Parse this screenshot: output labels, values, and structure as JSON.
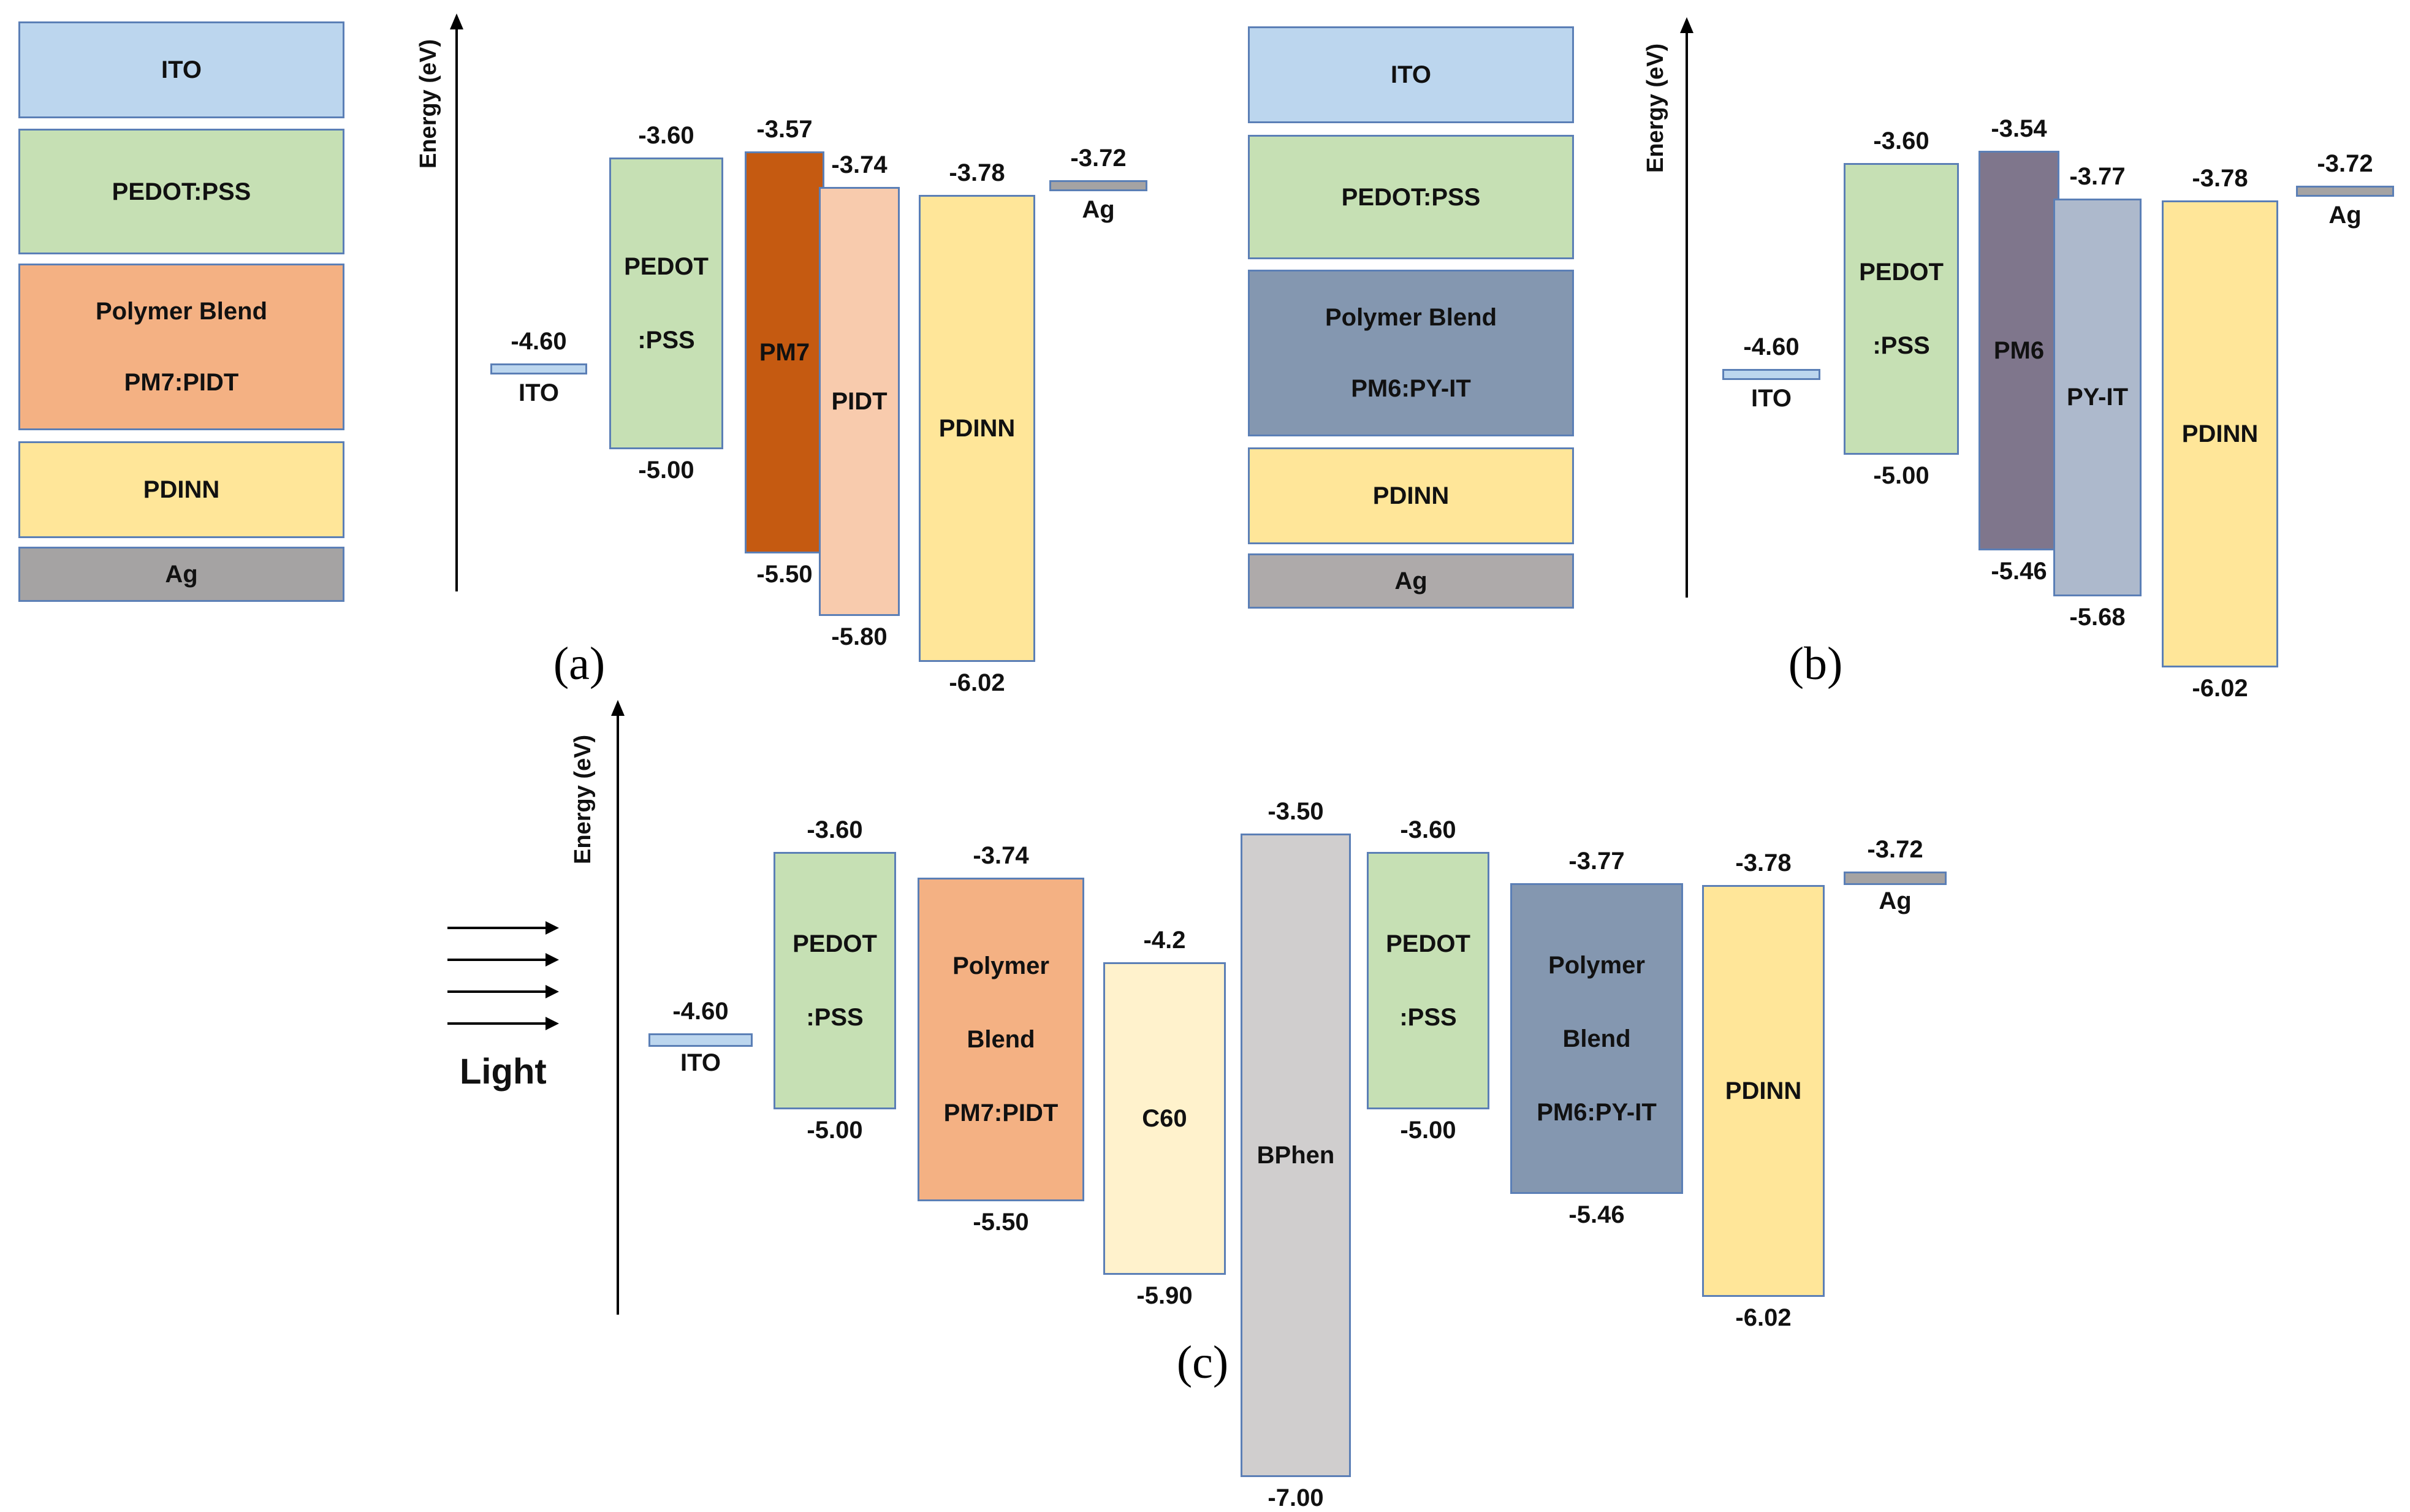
{
  "colors": {
    "ITO": "#bcd6ee",
    "PEDOT": "#c6e0b4",
    "PM7": "#c55a11",
    "PIDT": "#f8cbad",
    "PDINN": "#ffe699",
    "Ag": "#a5a3a3",
    "PM6": "#7f768c",
    "PYIT": "#adb9cc",
    "BlendA": "#f4b183",
    "BlendB": "#8497b0",
    "C60": "#fff2cc",
    "BPhen": "#d0cece",
    "stackAg": "#aeaaaa"
  },
  "panels": [
    {
      "tag": "(a)",
      "axis_label": "Energy (eV)",
      "stack": [
        {
          "label": "ITO",
          "color": "ITO"
        },
        {
          "label": "PEDOT:PSS",
          "color": "PEDOT"
        },
        {
          "label": "Polymer Blend\nPM7:PIDT",
          "color": "BlendA"
        },
        {
          "label": "PDINN",
          "color": "PDINN"
        },
        {
          "label": "Ag",
          "color": "Ag"
        }
      ],
      "levels": [
        {
          "name": "ITO",
          "color": "ITO",
          "top": "-4.60",
          "bottom": null,
          "lumo": -4.6,
          "homo": null,
          "label_inside": false
        },
        {
          "name": "PEDOT\n:PSS",
          "color": "PEDOT",
          "top": "-3.60",
          "bottom": "-5.00",
          "lumo": -3.6,
          "homo": -5.0,
          "label_inside": true
        },
        {
          "name": "PM7",
          "color": "PM7",
          "top": "-3.57",
          "bottom": "-5.50",
          "lumo": -3.57,
          "homo": -5.5,
          "label_inside": true
        },
        {
          "name": "PIDT",
          "color": "PIDT",
          "top": "-3.74",
          "bottom": "-5.80",
          "lumo": -3.74,
          "homo": -5.8,
          "label_inside": true
        },
        {
          "name": "PDINN",
          "color": "PDINN",
          "top": "-3.78",
          "bottom": "-6.02",
          "lumo": -3.78,
          "homo": -6.02,
          "label_inside": true
        },
        {
          "name": "Ag",
          "color": "Ag",
          "top": "-3.72",
          "bottom": null,
          "lumo": -3.72,
          "homo": null,
          "label_inside": false
        }
      ]
    },
    {
      "tag": "(b)",
      "axis_label": "Energy (eV)",
      "stack": [
        {
          "label": "ITO",
          "color": "ITO"
        },
        {
          "label": "PEDOT:PSS",
          "color": "PEDOT"
        },
        {
          "label": "Polymer Blend\nPM6:PY-IT",
          "color": "BlendB"
        },
        {
          "label": "PDINN",
          "color": "PDINN"
        },
        {
          "label": "Ag",
          "color": "stackAg"
        }
      ],
      "levels": [
        {
          "name": "ITO",
          "color": "ITO",
          "top": "-4.60",
          "bottom": null,
          "lumo": -4.6,
          "homo": null,
          "label_inside": false
        },
        {
          "name": "PEDOT\n:PSS",
          "color": "PEDOT",
          "top": "-3.60",
          "bottom": "-5.00",
          "lumo": -3.6,
          "homo": -5.0,
          "label_inside": true
        },
        {
          "name": "PM6",
          "color": "PM6",
          "top": "-3.54",
          "bottom": "-5.46",
          "lumo": -3.54,
          "homo": -5.46,
          "label_inside": true
        },
        {
          "name": "PY-IT",
          "color": "PYIT",
          "top": "-3.77",
          "bottom": "-5.68",
          "lumo": -3.77,
          "homo": -5.68,
          "label_inside": true
        },
        {
          "name": "PDINN",
          "color": "PDINN",
          "top": "-3.78",
          "bottom": "-6.02",
          "lumo": -3.78,
          "homo": -6.02,
          "label_inside": true
        },
        {
          "name": "Ag",
          "color": "Ag",
          "top": "-3.72",
          "bottom": null,
          "lumo": -3.72,
          "homo": null,
          "label_inside": false
        }
      ]
    },
    {
      "tag": "(c)",
      "axis_label": "Energy (eV)",
      "light_label": "Light",
      "levels": [
        {
          "name": "ITO",
          "color": "ITO",
          "top": "-4.60",
          "bottom": null,
          "lumo": -4.6,
          "homo": null,
          "label_inside": false
        },
        {
          "name": "PEDOT\n:PSS",
          "color": "PEDOT",
          "top": "-3.60",
          "bottom": "-5.00",
          "lumo": -3.6,
          "homo": -5.0,
          "label_inside": true
        },
        {
          "name": "Polymer\nBlend\nPM7:PIDT",
          "color": "BlendA",
          "top": "-3.74",
          "bottom": "-5.50",
          "lumo": -3.74,
          "homo": -5.5,
          "label_inside": true
        },
        {
          "name": "C60",
          "color": "C60",
          "top": "-4.2",
          "bottom": "-5.90",
          "lumo": -4.2,
          "homo": -5.9,
          "label_inside": true
        },
        {
          "name": "BPhen",
          "color": "BPhen",
          "top": "-3.50",
          "bottom": "-7.00",
          "lumo": -3.5,
          "homo": -7.0,
          "label_inside": true
        },
        {
          "name": "PEDOT\n:PSS",
          "color": "PEDOT",
          "top": "-3.60",
          "bottom": "-5.00",
          "lumo": -3.6,
          "homo": -5.0,
          "label_inside": true
        },
        {
          "name": "Polymer\nBlend\nPM6:PY-IT",
          "color": "BlendB",
          "top": "-3.77",
          "bottom": "-5.46",
          "lumo": -3.77,
          "homo": -5.46,
          "label_inside": true
        },
        {
          "name": "PDINN",
          "color": "PDINN",
          "top": "-3.78",
          "bottom": "-6.02",
          "lumo": -3.78,
          "homo": -6.02,
          "label_inside": true
        },
        {
          "name": "Ag",
          "color": "Ag",
          "top": "-3.72",
          "bottom": null,
          "lumo": -3.72,
          "homo": null,
          "label_inside": false
        }
      ]
    }
  ]
}
